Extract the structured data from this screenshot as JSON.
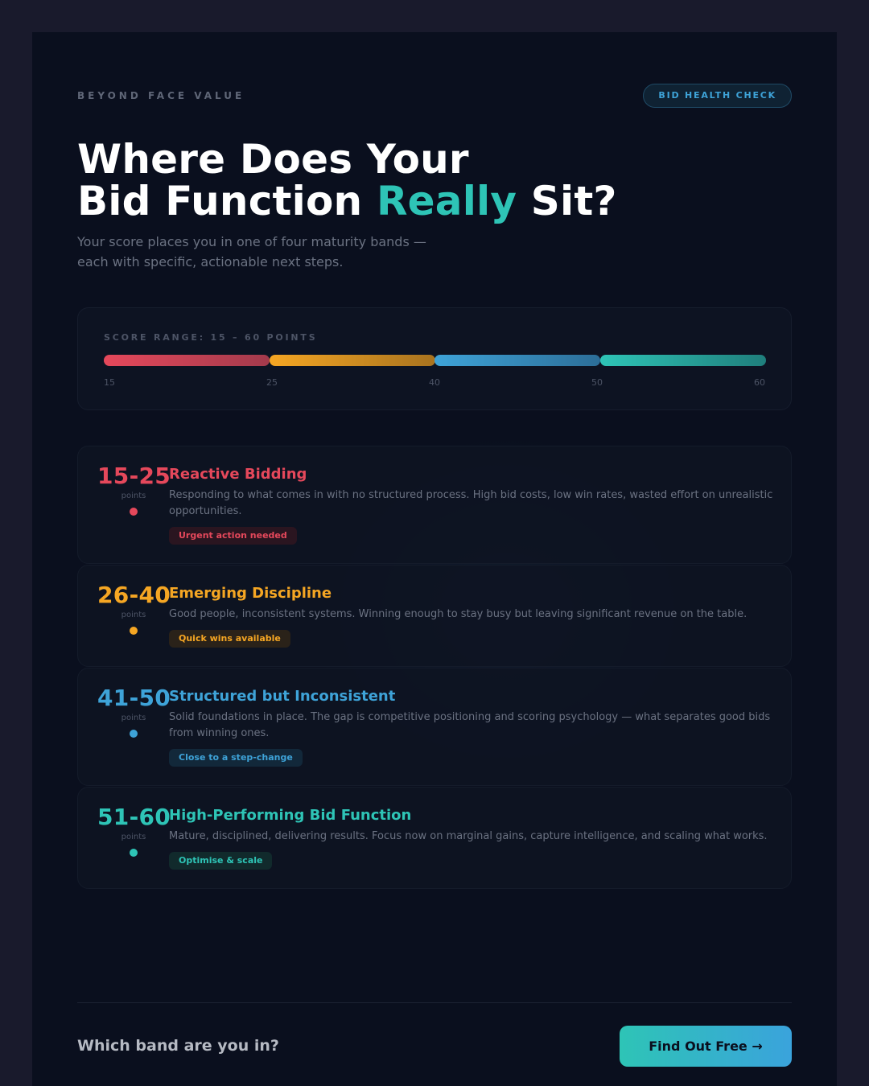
{
  "header": {
    "brand": "BEYOND FACE VALUE",
    "tag": "BID HEALTH CHECK"
  },
  "hero": {
    "title_line1": "Where Does Your",
    "title_line2_before": "Bid Function ",
    "title_line2_accent": "Really",
    "title_line2_after": " Sit?",
    "subtitle_line1": "Your score places you in one of four maturity bands —",
    "subtitle_line2": "each with specific, actionable next steps."
  },
  "score_range": {
    "label": "SCORE RANGE: 15 – 60 POINTS",
    "ticks": [
      "15",
      "25",
      "40",
      "50",
      "60"
    ]
  },
  "bands": [
    {
      "range": "15-25",
      "points_label": "points",
      "title": "Reactive Bidding",
      "description": "Responding to what comes in with no structured process. High bid costs, low win rates, wasted effort on unrealistic opportunities.",
      "badge": "Urgent action needed",
      "color": "#e5485b"
    },
    {
      "range": "26-40",
      "points_label": "points",
      "title": "Emerging Discipline",
      "description": "Good people, inconsistent systems. Winning enough to stay busy but leaving significant revenue on the table.",
      "badge": "Quick wins available",
      "color": "#f5a623"
    },
    {
      "range": "41-50",
      "points_label": "points",
      "title": "Structured but Inconsistent",
      "description": "Solid foundations in place. The gap is competitive positioning and scoring psychology — what separates good bids from winning ones.",
      "badge": "Close to a step-change",
      "color": "#3ea3d8"
    },
    {
      "range": "51-60",
      "points_label": "points",
      "title": "High-Performing Bid Function",
      "description": "Mature, disciplined, delivering results. Focus now on marginal gains, capture intelligence, and scaling what works.",
      "badge": "Optimise & scale",
      "color": "#2ec4b6"
    }
  ],
  "footer": {
    "question": "Which band are you in?",
    "cta_label": "Find Out Free →"
  }
}
